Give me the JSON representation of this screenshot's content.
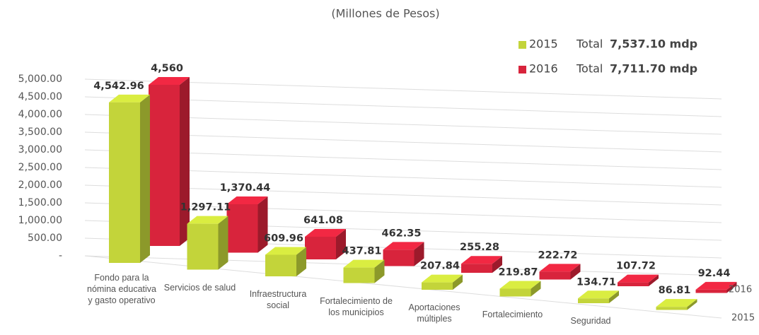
{
  "chart_data": {
    "type": "bar3d",
    "subtitle": "(Millones de Pesos)",
    "categories": [
      "Fondo para la nómina educativa y gasto operativo",
      "Servicios de salud",
      "Infraestructura social",
      "Fortalecimiento de los municipios",
      "Aportaciones múltiples",
      "Fortalecimiento",
      "Seguridad",
      null
    ],
    "series": [
      {
        "name": "2015",
        "color": "#c3d43a",
        "total_label": "Total",
        "total": "7,537.10 mdp",
        "values": [
          4542.96,
          1297.11,
          609.96,
          437.81,
          207.84,
          219.87,
          134.71,
          86.81
        ],
        "value_labels": [
          "4,542.96",
          "1,297.11",
          "609.96",
          "437.81",
          "207.84",
          "219.87",
          "134.71",
          "86.81"
        ]
      },
      {
        "name": "2016",
        "color": "#d8243c",
        "total_label": "Total",
        "total": "7,711.70 mdp",
        "values": [
          4560,
          1370.44,
          641.08,
          462.35,
          255.28,
          222.72,
          107.72,
          92.44
        ],
        "value_labels": [
          "4,560",
          "1,370.44",
          "641.08",
          "462.35",
          "255.28",
          "222.72",
          "107.72",
          "92.44"
        ]
      }
    ],
    "ylim": [
      0,
      5000
    ],
    "yticks": [
      {
        "value": 0,
        "label": "-"
      },
      {
        "value": 500,
        "label": "500.00"
      },
      {
        "value": 1000,
        "label": "1,000.00"
      },
      {
        "value": 1500,
        "label": "1,500.00"
      },
      {
        "value": 2000,
        "label": "2,000.00"
      },
      {
        "value": 2500,
        "label": "2,500.00"
      },
      {
        "value": 3000,
        "label": "3,000.00"
      },
      {
        "value": 3500,
        "label": "3,500.00"
      },
      {
        "value": 4000,
        "label": "4,000.00"
      },
      {
        "value": 4500,
        "label": "4,500.00"
      },
      {
        "value": 5000,
        "label": "5,000.00"
      }
    ],
    "grid": true
  }
}
